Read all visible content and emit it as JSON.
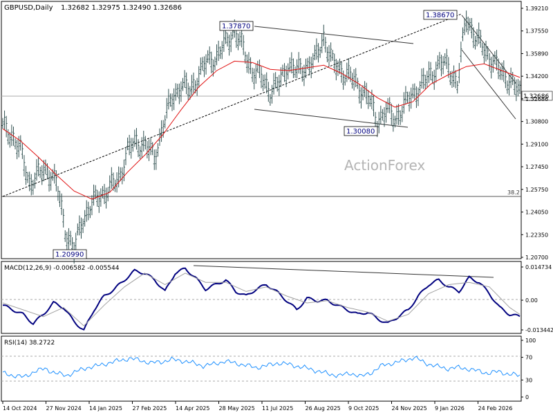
{
  "header": {
    "symbol": "GBPUSD,Daily",
    "ohlc": "1.32682 1.32975 1.32490 1.32686"
  },
  "watermark": "ActionForex",
  "colors": {
    "price": "#2f4f4f",
    "ma": "#e01010",
    "trend": "#000000",
    "macd": "#00007f",
    "signal": "#a0a0a0",
    "rsi": "#1e90ff",
    "grid": "#c0c0c0"
  },
  "chart_data": [
    {
      "type": "candlestick",
      "series": [
        {
          "name": "price",
          "values": [
            [
              0,
              1.303
            ],
            [
              5,
              1.298
            ],
            [
              10,
              1.285
            ],
            [
              15,
              1.262
            ],
            [
              20,
              1.268
            ],
            [
              25,
              1.272
            ],
            [
              30,
              1.262
            ],
            [
              35,
              1.228
            ],
            [
              40,
              1.212
            ],
            [
              45,
              1.236
            ],
            [
              50,
              1.246
            ],
            [
              55,
              1.253
            ],
            [
              60,
              1.258
            ],
            [
              65,
              1.264
            ],
            [
              70,
              1.286
            ],
            [
              75,
              1.292
            ],
            [
              80,
              1.29
            ],
            [
              85,
              1.28
            ],
            [
              90,
              1.305
            ],
            [
              95,
              1.325
            ],
            [
              100,
              1.334
            ],
            [
              105,
              1.33
            ],
            [
              110,
              1.342
            ],
            [
              115,
              1.352
            ],
            [
              120,
              1.355
            ],
            [
              125,
              1.365
            ],
            [
              130,
              1.375
            ],
            [
              135,
              1.36
            ],
            [
              140,
              1.345
            ],
            [
              145,
              1.34
            ],
            [
              150,
              1.33
            ],
            [
              155,
              1.335
            ],
            [
              160,
              1.35
            ],
            [
              165,
              1.344
            ],
            [
              170,
              1.348
            ],
            [
              175,
              1.352
            ],
            [
              180,
              1.37
            ],
            [
              185,
              1.35
            ],
            [
              190,
              1.345
            ],
            [
              195,
              1.34
            ],
            [
              200,
              1.333
            ],
            [
              205,
              1.325
            ],
            [
              210,
              1.308
            ],
            [
              215,
              1.315
            ],
            [
              220,
              1.31
            ],
            [
              225,
              1.318
            ],
            [
              230,
              1.328
            ],
            [
              235,
              1.334
            ],
            [
              240,
              1.342
            ],
            [
              245,
              1.35
            ],
            [
              250,
              1.348
            ],
            [
              255,
              1.335
            ],
            [
              260,
              1.385
            ],
            [
              265,
              1.37
            ],
            [
              270,
              1.36
            ],
            [
              275,
              1.352
            ],
            [
              280,
              1.342
            ],
            [
              285,
              1.338
            ],
            [
              290,
              1.327
            ]
          ]
        },
        {
          "name": "MA",
          "values": [
            [
              0,
              1.302
            ],
            [
              10,
              1.293
            ],
            [
              20,
              1.281
            ],
            [
              30,
              1.268
            ],
            [
              40,
              1.256
            ],
            [
              50,
              1.25
            ],
            [
              60,
              1.255
            ],
            [
              70,
              1.27
            ],
            [
              80,
              1.283
            ],
            [
              90,
              1.298
            ],
            [
              100,
              1.316
            ],
            [
              110,
              1.333
            ],
            [
              120,
              1.345
            ],
            [
              130,
              1.352
            ],
            [
              140,
              1.351
            ],
            [
              150,
              1.346
            ],
            [
              160,
              1.345
            ],
            [
              170,
              1.347
            ],
            [
              180,
              1.349
            ],
            [
              190,
              1.343
            ],
            [
              200,
              1.335
            ],
            [
              210,
              1.325
            ],
            [
              220,
              1.318
            ],
            [
              230,
              1.322
            ],
            [
              240,
              1.335
            ],
            [
              250,
              1.342
            ],
            [
              260,
              1.348
            ],
            [
              270,
              1.35
            ],
            [
              280,
              1.345
            ],
            [
              290,
              1.34
            ]
          ]
        }
      ],
      "price_labels": [
        "1.37870",
        "1.38670",
        "1.30080",
        "1.20990"
      ],
      "fib_label": "38.2",
      "current_price": "1.32686",
      "y_ticks": [
        "1.39210",
        "1.37550",
        "1.35890",
        "1.34200",
        "1.32686",
        "1.30800",
        "1.29100",
        "1.27450",
        "1.25750",
        "1.24050",
        "1.22350",
        "1.20700"
      ],
      "ylim": [
        1.207,
        1.3921
      ]
    },
    {
      "type": "line",
      "title": "MACD(12,26,9) -0.006582 -0.005544",
      "series": [
        {
          "name": "MACD",
          "values": [
            [
              0,
              -0.002
            ],
            [
              5,
              -0.004
            ],
            [
              10,
              -0.006
            ],
            [
              15,
              -0.01
            ],
            [
              20,
              -0.006
            ],
            [
              25,
              -0.001
            ],
            [
              30,
              -0.003
            ],
            [
              35,
              -0.009
            ],
            [
              40,
              -0.013
            ],
            [
              45,
              -0.004
            ],
            [
              50,
              0.002
            ],
            [
              55,
              0.005
            ],
            [
              60,
              0.009
            ],
            [
              65,
              0.013
            ],
            [
              70,
              0.012
            ],
            [
              75,
              0.009
            ],
            [
              80,
              0.004
            ],
            [
              85,
              0.012
            ],
            [
              90,
              0.014
            ],
            [
              95,
              0.01
            ],
            [
              100,
              0.005
            ],
            [
              105,
              0.007
            ],
            [
              110,
              0.009
            ],
            [
              115,
              0.004
            ],
            [
              120,
              0.002
            ],
            [
              125,
              0.005
            ],
            [
              130,
              0.007
            ],
            [
              135,
              0.004
            ],
            [
              140,
              0.0
            ],
            [
              145,
              -0.004
            ],
            [
              150,
              0.001
            ],
            [
              155,
              0.0
            ],
            [
              160,
              0.0
            ],
            [
              165,
              -0.002
            ],
            [
              170,
              -0.004
            ],
            [
              175,
              -0.006
            ],
            [
              180,
              -0.005
            ],
            [
              185,
              -0.008
            ],
            [
              190,
              -0.01
            ],
            [
              195,
              -0.007
            ],
            [
              200,
              -0.004
            ],
            [
              205,
              0.002
            ],
            [
              210,
              0.007
            ],
            [
              215,
              0.009
            ],
            [
              220,
              0.006
            ],
            [
              225,
              0.004
            ],
            [
              230,
              0.01
            ],
            [
              235,
              0.008
            ],
            [
              240,
              0.003
            ],
            [
              245,
              -0.003
            ],
            [
              250,
              -0.006
            ],
            [
              255,
              -0.007
            ]
          ]
        },
        {
          "name": "signal",
          "values": [
            [
              0,
              -0.001
            ],
            [
              10,
              -0.004
            ],
            [
              20,
              -0.007
            ],
            [
              30,
              -0.003
            ],
            [
              40,
              -0.011
            ],
            [
              50,
              -0.002
            ],
            [
              60,
              0.006
            ],
            [
              70,
              0.012
            ],
            [
              80,
              0.007
            ],
            [
              90,
              0.012
            ],
            [
              100,
              0.008
            ],
            [
              110,
              0.008
            ],
            [
              120,
              0.004
            ],
            [
              130,
              0.006
            ],
            [
              140,
              0.002
            ],
            [
              150,
              -0.001
            ],
            [
              160,
              0.0
            ],
            [
              170,
              -0.003
            ],
            [
              180,
              -0.005
            ],
            [
              190,
              -0.009
            ],
            [
              200,
              -0.006
            ],
            [
              210,
              0.003
            ],
            [
              220,
              0.007
            ],
            [
              230,
              0.008
            ],
            [
              240,
              0.006
            ],
            [
              250,
              -0.003
            ],
            [
              255,
              -0.006
            ]
          ]
        }
      ],
      "y_ticks": [
        "0.014734",
        "0.00",
        "-0.013442"
      ],
      "ylim": [
        -0.0134,
        0.0147
      ]
    },
    {
      "type": "line",
      "title": "RSI(14) 38.2722",
      "series": [
        {
          "name": "RSI",
          "values": [
            [
              0,
              42
            ],
            [
              5,
              38
            ],
            [
              10,
              35
            ],
            [
              15,
              45
            ],
            [
              20,
              50
            ],
            [
              25,
              42
            ],
            [
              30,
              38
            ],
            [
              35,
              45
            ],
            [
              40,
              52
            ],
            [
              45,
              55
            ],
            [
              50,
              60
            ],
            [
              55,
              64
            ],
            [
              60,
              68
            ],
            [
              65,
              65
            ],
            [
              70,
              60
            ],
            [
              75,
              62
            ],
            [
              80,
              66
            ],
            [
              85,
              64
            ],
            [
              90,
              60
            ],
            [
              95,
              55
            ],
            [
              100,
              58
            ],
            [
              105,
              63
            ],
            [
              110,
              60
            ],
            [
              115,
              56
            ],
            [
              120,
              52
            ],
            [
              125,
              55
            ],
            [
              130,
              60
            ],
            [
              135,
              58
            ],
            [
              140,
              54
            ],
            [
              145,
              50
            ],
            [
              150,
              45
            ],
            [
              155,
              40
            ],
            [
              160,
              38
            ],
            [
              165,
              42
            ],
            [
              170,
              36
            ],
            [
              175,
              44
            ],
            [
              180,
              56
            ],
            [
              185,
              60
            ],
            [
              190,
              64
            ],
            [
              195,
              70
            ],
            [
              200,
              60
            ],
            [
              205,
              55
            ],
            [
              210,
              50
            ],
            [
              215,
              52
            ],
            [
              220,
              50
            ],
            [
              225,
              46
            ],
            [
              230,
              42
            ],
            [
              235,
              45
            ],
            [
              240,
              40
            ],
            [
              245,
              38
            ]
          ]
        }
      ],
      "y_ticks": [
        "100",
        "70",
        "30",
        "0"
      ],
      "ylim": [
        0,
        100
      ]
    }
  ],
  "x_axis": {
    "labels": [
      "14 Oct 2024",
      "27 Nov 2024",
      "14 Jan 2025",
      "27 Feb 2025",
      "14 Apr 2025",
      "28 May 2025",
      "11 Jul 2025",
      "26 Aug 2025",
      "9 Oct 2025",
      "24 Nov 2025",
      "9 Jan 2026",
      "24 Feb 2026"
    ]
  }
}
